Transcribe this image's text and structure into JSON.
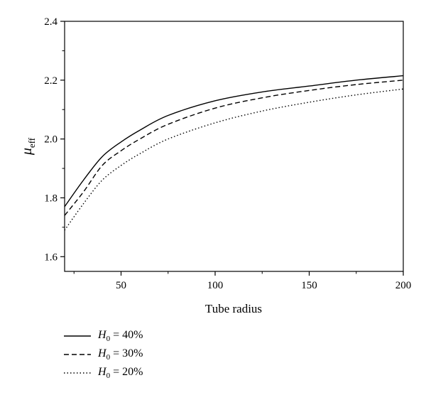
{
  "chart_data": {
    "type": "line",
    "xlabel": "Tube radius",
    "ylabel_symbol": "μ",
    "ylabel_subscript": "eff",
    "xlim": [
      20,
      200
    ],
    "ylim": [
      1.55,
      2.4
    ],
    "x_ticks": [
      50,
      100,
      150,
      200
    ],
    "y_ticks": [
      1.6,
      1.8,
      2.0,
      2.2,
      2.4
    ],
    "x_tick_labels": [
      "50",
      "100",
      "150",
      "200"
    ],
    "y_tick_labels": [
      "1.6",
      "1.8",
      "2.0",
      "2.2",
      "2.4"
    ],
    "grid": false,
    "legend_position": "bottom-left-outside",
    "series": [
      {
        "name": "H0 = 40%",
        "legend_var": "H",
        "legend_sub": "0",
        "legend_rest": " = 40%",
        "style": "solid",
        "x": [
          20,
          30,
          40,
          50,
          60,
          75,
          100,
          125,
          150,
          175,
          200
        ],
        "y": [
          1.77,
          1.86,
          1.94,
          1.99,
          2.03,
          2.08,
          2.13,
          2.16,
          2.18,
          2.2,
          2.215
        ]
      },
      {
        "name": "H0 = 30%",
        "legend_var": "H",
        "legend_sub": "0",
        "legend_rest": " = 30%",
        "style": "dashed",
        "x": [
          20,
          30,
          40,
          50,
          60,
          75,
          100,
          125,
          150,
          175,
          200
        ],
        "y": [
          1.74,
          1.82,
          1.91,
          1.96,
          2.0,
          2.05,
          2.105,
          2.14,
          2.165,
          2.185,
          2.2
        ]
      },
      {
        "name": "H0 = 20%",
        "legend_var": "H",
        "legend_sub": "0",
        "legend_rest": " = 20%",
        "style": "dotted",
        "x": [
          20,
          30,
          40,
          50,
          60,
          75,
          100,
          125,
          150,
          175,
          200
        ],
        "y": [
          1.69,
          1.78,
          1.86,
          1.91,
          1.95,
          2.0,
          2.055,
          2.095,
          2.125,
          2.15,
          2.17
        ]
      }
    ]
  }
}
